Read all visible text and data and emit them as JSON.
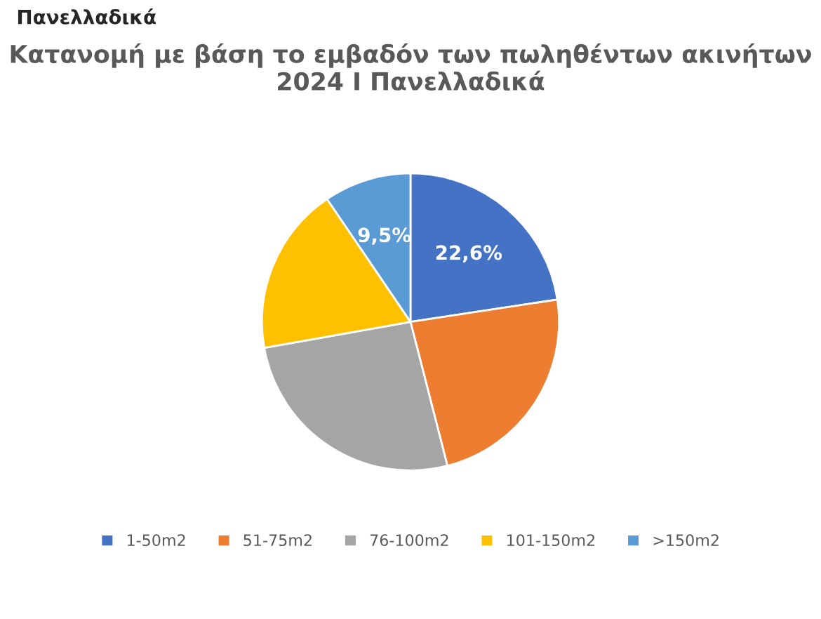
{
  "chart_data": {
    "type": "pie",
    "title": "Κατανομή με βάση το εμβαδόν των πωληθέντων ακινήτων 2024 I Πανελλαδικά",
    "categories": [
      "1-50m2",
      "51-75m2",
      "76-100m2",
      "101-150m2",
      ">150m2"
    ],
    "values": [
      22.6,
      23.4,
      26.2,
      18.3,
      9.5
    ],
    "colors": [
      "#4472c4",
      "#ed7d31",
      "#a5a5a5",
      "#ffc000",
      "#5b9bd5"
    ],
    "value_labels": [
      "22,6%",
      null,
      null,
      null,
      "9,5%"
    ],
    "legend": "bottom",
    "annotations": [
      "Πανελλαδικά"
    ]
  }
}
